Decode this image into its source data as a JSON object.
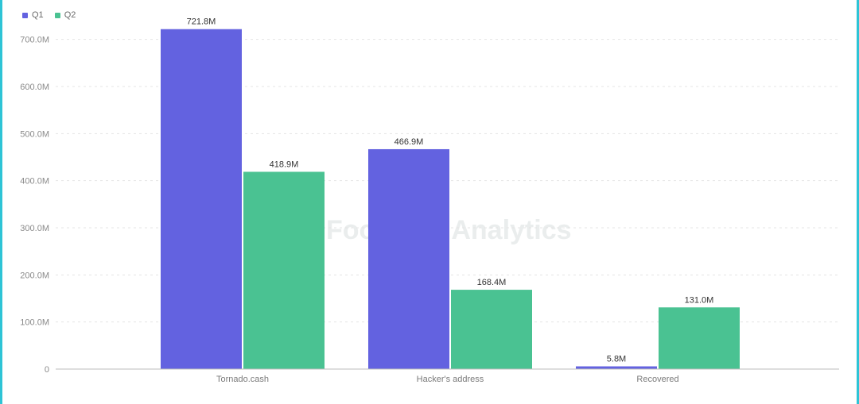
{
  "chart_data": {
    "type": "bar",
    "categories": [
      "Tornado.cash",
      "Hacker's address",
      "Recovered"
    ],
    "series": [
      {
        "name": "Q1",
        "values": [
          721.8,
          466.9,
          5.8
        ],
        "labels": [
          "721.8M",
          "466.9M",
          "5.8M"
        ],
        "color": "#6362e0"
      },
      {
        "name": "Q2",
        "values": [
          418.9,
          168.4,
          131.0
        ],
        "labels": [
          "418.9M",
          "168.4M",
          "131.0M"
        ],
        "color": "#4ac292"
      }
    ],
    "yticks": [
      0,
      100,
      200,
      300,
      400,
      500,
      600,
      700
    ],
    "ytick_labels": [
      "0",
      "100.0M",
      "200.0M",
      "300.0M",
      "400.0M",
      "500.0M",
      "600.0M",
      "700.0M"
    ],
    "ylim": [
      0,
      750
    ],
    "grid": true,
    "legend": "top-left"
  },
  "watermark": {
    "text": "Footprint Analytics"
  }
}
